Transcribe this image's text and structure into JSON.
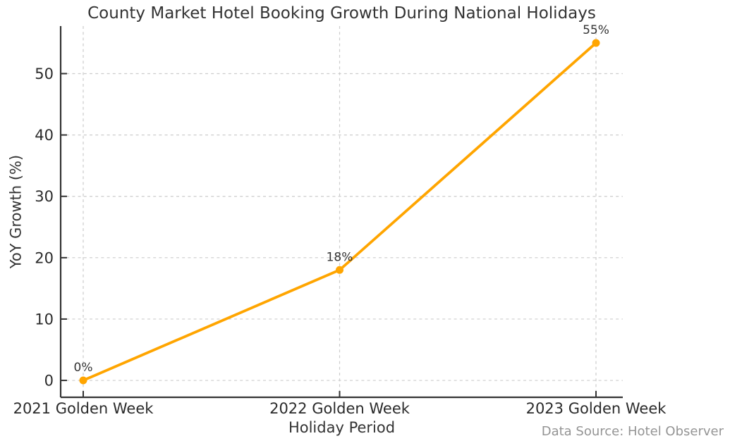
{
  "page": {
    "background": "#ffffff"
  },
  "chart_data": {
    "type": "line",
    "title": "County Market Hotel Booking Growth During National Holidays",
    "xlabel": "Holiday Period",
    "ylabel": "YoY Growth (%)",
    "categories": [
      "2021 Golden Week",
      "2022 Golden Week",
      "2023 Golden Week"
    ],
    "series": [
      {
        "name": "YoY Growth",
        "values": [
          0,
          18,
          55
        ]
      }
    ],
    "point_labels": [
      "0%",
      "18%",
      "55%"
    ],
    "yticks": [
      0,
      10,
      20,
      30,
      40,
      50
    ],
    "ylim": [
      -2.75,
      57.75
    ],
    "grid": true,
    "grid_style": "dashed",
    "legend_position": "none",
    "line_color": "#FFA500",
    "marker": "circle",
    "source_note": "Data Source: Hotel Observer",
    "colors": {
      "text": "#333333",
      "tick_label": "#2b2b2b",
      "grid": "#cccccc",
      "spine": "#333333",
      "muted": "#949494"
    }
  }
}
